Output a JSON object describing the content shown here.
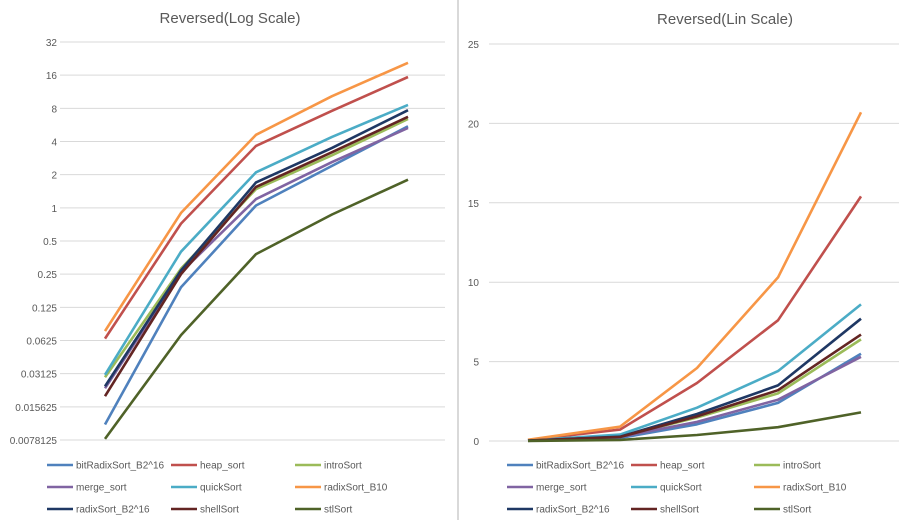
{
  "colors": {
    "bitRadixSort_B2^16": "#4f81bd",
    "heap_sort": "#c0504d",
    "introSort": "#9bbb59",
    "merge_sort": "#8064a2",
    "quickSort": "#4bacc6",
    "radixSort_B10": "#f79646",
    "radixSort_B2^16": "#1f3864",
    "shellSort": "#632523",
    "stlSort": "#4f6228"
  },
  "legend": [
    "bitRadixSort_B2^16",
    "heap_sort",
    "introSort",
    "merge_sort",
    "quickSort",
    "radixSort_B10",
    "radixSort_B2^16",
    "shellSort",
    "stlSort"
  ],
  "chart_data": [
    {
      "type": "line",
      "title": "Reversed(Log Scale)",
      "yscale": "log2",
      "ylim": [
        0.0078125,
        32
      ],
      "yticks": [
        "0.0078125",
        "0.015625",
        "0.03125",
        "0.0625",
        "0.125",
        "0.25",
        "0.5",
        "1",
        "2",
        "4",
        "8",
        "16",
        "32"
      ],
      "grid": true,
      "legend_position": "bottom",
      "x": [
        1,
        2,
        3,
        4,
        5
      ],
      "series": [
        {
          "name": "bitRadixSort_B2^16",
          "values": [
            0.0108,
            0.19,
            1.05,
            2.4,
            5.5
          ]
        },
        {
          "name": "heap_sort",
          "values": [
            0.065,
            0.72,
            3.65,
            7.6,
            15.4
          ]
        },
        {
          "name": "introSort",
          "values": [
            0.029,
            0.28,
            1.48,
            3.0,
            6.4
          ]
        },
        {
          "name": "merge_sort",
          "values": [
            0.023,
            0.26,
            1.2,
            2.6,
            5.3
          ]
        },
        {
          "name": "quickSort",
          "values": [
            0.0305,
            0.4,
            2.1,
            4.4,
            8.6
          ]
        },
        {
          "name": "radixSort_B10",
          "values": [
            0.076,
            0.9,
            4.6,
            10.3,
            20.7
          ]
        },
        {
          "name": "radixSort_B2^16",
          "values": [
            0.024,
            0.27,
            1.7,
            3.5,
            7.7
          ]
        },
        {
          "name": "shellSort",
          "values": [
            0.0195,
            0.25,
            1.55,
            3.2,
            6.7
          ]
        },
        {
          "name": "stlSort",
          "values": [
            0.008,
            0.07,
            0.38,
            0.87,
            1.8
          ]
        }
      ]
    },
    {
      "type": "line",
      "title": "Reversed(Lin Scale)",
      "yscale": "linear",
      "ylim": [
        0,
        25
      ],
      "yticks": [
        "0",
        "5",
        "10",
        "15",
        "20",
        "25"
      ],
      "grid": true,
      "legend_position": "bottom",
      "x": [
        1,
        2,
        3,
        4,
        5
      ],
      "series": [
        {
          "name": "bitRadixSort_B2^16",
          "values": [
            0.0108,
            0.19,
            1.05,
            2.4,
            5.5
          ]
        },
        {
          "name": "heap_sort",
          "values": [
            0.065,
            0.72,
            3.65,
            7.6,
            15.4
          ]
        },
        {
          "name": "introSort",
          "values": [
            0.029,
            0.28,
            1.48,
            3.0,
            6.4
          ]
        },
        {
          "name": "merge_sort",
          "values": [
            0.023,
            0.26,
            1.2,
            2.6,
            5.3
          ]
        },
        {
          "name": "quickSort",
          "values": [
            0.0305,
            0.4,
            2.1,
            4.4,
            8.6
          ]
        },
        {
          "name": "radixSort_B10",
          "values": [
            0.076,
            0.9,
            4.6,
            10.3,
            20.7
          ]
        },
        {
          "name": "radixSort_B2^16",
          "values": [
            0.024,
            0.27,
            1.7,
            3.5,
            7.7
          ]
        },
        {
          "name": "shellSort",
          "values": [
            0.0195,
            0.25,
            1.55,
            3.2,
            6.7
          ]
        },
        {
          "name": "stlSort",
          "values": [
            0.008,
            0.07,
            0.38,
            0.87,
            1.8
          ]
        }
      ]
    }
  ]
}
